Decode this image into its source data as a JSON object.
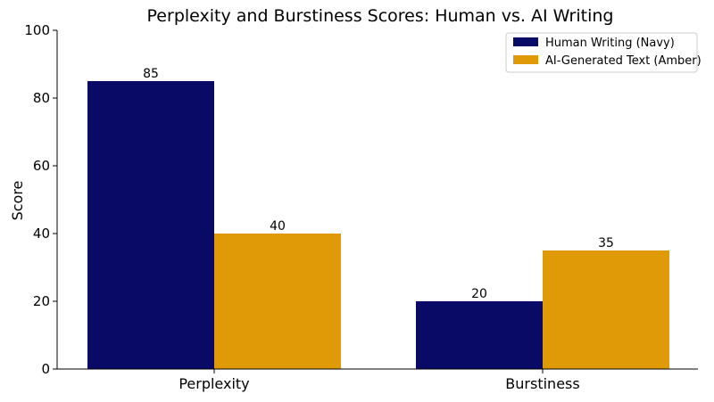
{
  "chart_data": {
    "type": "bar",
    "title": "Perplexity and Burstiness Scores: Human vs. AI Writing",
    "xlabel": "",
    "ylabel": "Score",
    "categories": [
      "Perplexity",
      "Burstiness"
    ],
    "series": [
      {
        "name": "Human Writing (Navy)",
        "values": [
          85,
          20
        ],
        "color": "#080a66"
      },
      {
        "name": "AI-Generated Text (Amber)",
        "values": [
          40,
          35
        ],
        "color": "#e09a08"
      }
    ],
    "ylim": [
      0,
      100
    ],
    "yticks": [
      0,
      20,
      40,
      60,
      80,
      100
    ],
    "grid": false,
    "legend_position": "top-right",
    "data_labels": true
  }
}
